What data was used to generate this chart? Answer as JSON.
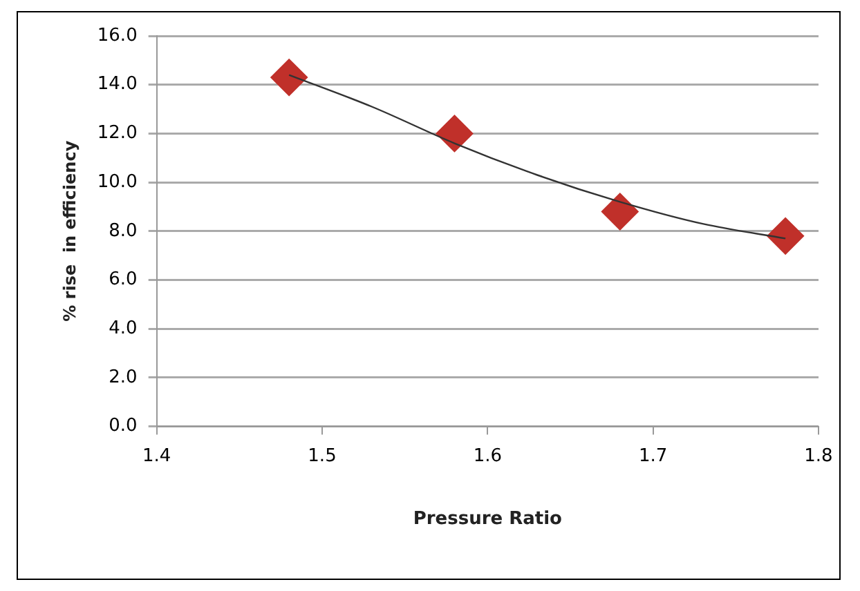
{
  "chart_data": {
    "type": "scatter",
    "xlabel": "Pressure Ratio",
    "ylabel": "% rise  in efficiency",
    "xlim": [
      1.4,
      1.8
    ],
    "xticks": [
      {
        "value": 1.4,
        "label": "1.4"
      },
      {
        "value": 1.5,
        "label": "1.5"
      },
      {
        "value": 1.6,
        "label": "1.6"
      },
      {
        "value": 1.7,
        "label": "1.7"
      },
      {
        "value": 1.8,
        "label": "1.8"
      }
    ],
    "ylim": [
      0,
      16
    ],
    "yticks": [
      {
        "value": 0,
        "label": "0.0"
      },
      {
        "value": 2,
        "label": "2.0"
      },
      {
        "value": 4,
        "label": "4.0"
      },
      {
        "value": 6,
        "label": "6.0"
      },
      {
        "value": 8,
        "label": "8.0"
      },
      {
        "value": 10,
        "label": "10.0"
      },
      {
        "value": 12,
        "label": "12.0"
      },
      {
        "value": 14,
        "label": "14.0"
      },
      {
        "value": 16,
        "label": "16.0"
      }
    ],
    "grid": "y",
    "marker": "diamond",
    "series": [
      {
        "color": "#c0302a",
        "x": [
          1.48,
          1.58,
          1.68,
          1.78
        ],
        "values": [
          14.3,
          12.0,
          8.8,
          7.8
        ]
      },
      {
        "type": "line",
        "color": "#333333",
        "marker": "none",
        "x": [
          1.48,
          1.53,
          1.58,
          1.63,
          1.68,
          1.73,
          1.78
        ],
        "values": [
          14.4,
          13.1,
          11.6,
          10.3,
          9.2,
          8.3,
          7.7
        ]
      }
    ]
  }
}
